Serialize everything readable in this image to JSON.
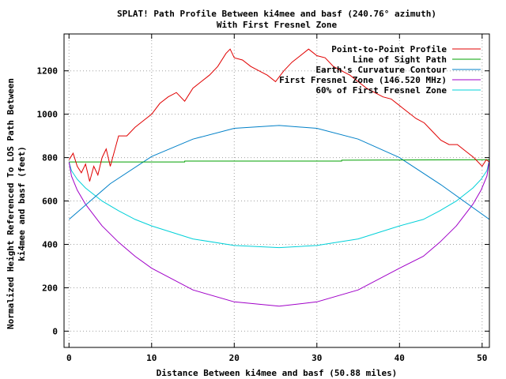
{
  "chart_data": {
    "type": "line",
    "title": "SPLAT! Path Profile Between ki4mee and basf (240.76° azimuth)",
    "subtitle": "With First Fresnel Zone",
    "xlabel": "Distance Between ki4mee and basf (50.88 miles)",
    "ylabel_line1": "Normalized Height Referenced To LOS Path Between",
    "ylabel_line2": "ki4mee and basf (feet)",
    "xlim": [
      -0.6,
      50.88
    ],
    "ylim": [
      -75,
      1370
    ],
    "xticks": [
      0,
      10,
      20,
      30,
      40,
      50
    ],
    "yticks": [
      0,
      200,
      400,
      600,
      800,
      1000,
      1200
    ],
    "grid": true,
    "legend_position": "top-right",
    "series": [
      {
        "name": "Point-to-Point Profile",
        "color": "#e00000",
        "x": [
          0,
          0.5,
          1,
          1.5,
          2,
          2.5,
          3,
          3.5,
          4,
          4.5,
          5,
          6,
          7,
          8,
          9,
          10,
          11,
          12,
          13,
          14,
          15,
          16,
          17,
          18,
          19,
          19.5,
          20,
          21,
          22,
          23,
          24,
          25,
          26,
          27,
          28,
          29,
          30,
          31,
          32,
          33,
          34,
          35,
          36,
          37,
          38,
          39,
          40,
          41,
          42,
          43,
          44,
          45,
          46,
          47,
          48,
          49,
          50,
          50.5,
          50.88
        ],
        "y": [
          790,
          820,
          760,
          730,
          770,
          690,
          760,
          720,
          800,
          840,
          760,
          900,
          900,
          940,
          970,
          1000,
          1050,
          1080,
          1100,
          1060,
          1120,
          1150,
          1180,
          1220,
          1280,
          1300,
          1260,
          1250,
          1220,
          1200,
          1180,
          1150,
          1200,
          1240,
          1270,
          1300,
          1270,
          1260,
          1220,
          1200,
          1180,
          1150,
          1120,
          1100,
          1080,
          1070,
          1040,
          1010,
          980,
          960,
          920,
          880,
          860,
          860,
          830,
          800,
          760,
          790,
          780
        ]
      },
      {
        "name": "Line of Sight Path",
        "color": "#00a000",
        "x": [
          0,
          10,
          14,
          14.01,
          30,
          33,
          33.01,
          50.88
        ],
        "y": [
          780,
          780,
          780,
          784,
          784,
          784,
          788,
          790
        ]
      },
      {
        "name": "Earth's Curvature Contour",
        "color": "#0080c8",
        "x": [
          0,
          5,
          10,
          15,
          20,
          25.44,
          30,
          35,
          40,
          45,
          50.88
        ],
        "y": [
          515,
          680,
          805,
          885,
          935,
          948,
          935,
          885,
          800,
          675,
          515
        ]
      },
      {
        "name": "First Fresnel Zone (146.520 MHz)",
        "color": "#a000c8",
        "x": [
          0,
          0.3,
          1,
          2,
          4,
          6,
          8,
          10,
          15,
          20,
          25.44,
          30,
          35,
          40,
          42.88,
          44.88,
          46.88,
          48.88,
          49.88,
          50.58,
          50.88
        ],
        "y": [
          780,
          715,
          650,
          585,
          485,
          410,
          345,
          290,
          190,
          135,
          115,
          135,
          190,
          290,
          345,
          410,
          485,
          585,
          650,
          715,
          790
        ]
      },
      {
        "name": "60% of First Fresnel Zone",
        "color": "#00d0d8",
        "x": [
          0,
          0.3,
          1,
          2,
          4,
          6,
          8,
          10,
          15,
          20,
          25.44,
          30,
          35,
          40,
          42.88,
          44.88,
          46.88,
          48.88,
          49.88,
          50.58,
          50.88
        ],
        "y": [
          780,
          740,
          700,
          660,
          600,
          555,
          515,
          485,
          425,
          395,
          385,
          395,
          425,
          485,
          515,
          555,
          600,
          660,
          700,
          740,
          790
        ]
      }
    ]
  }
}
